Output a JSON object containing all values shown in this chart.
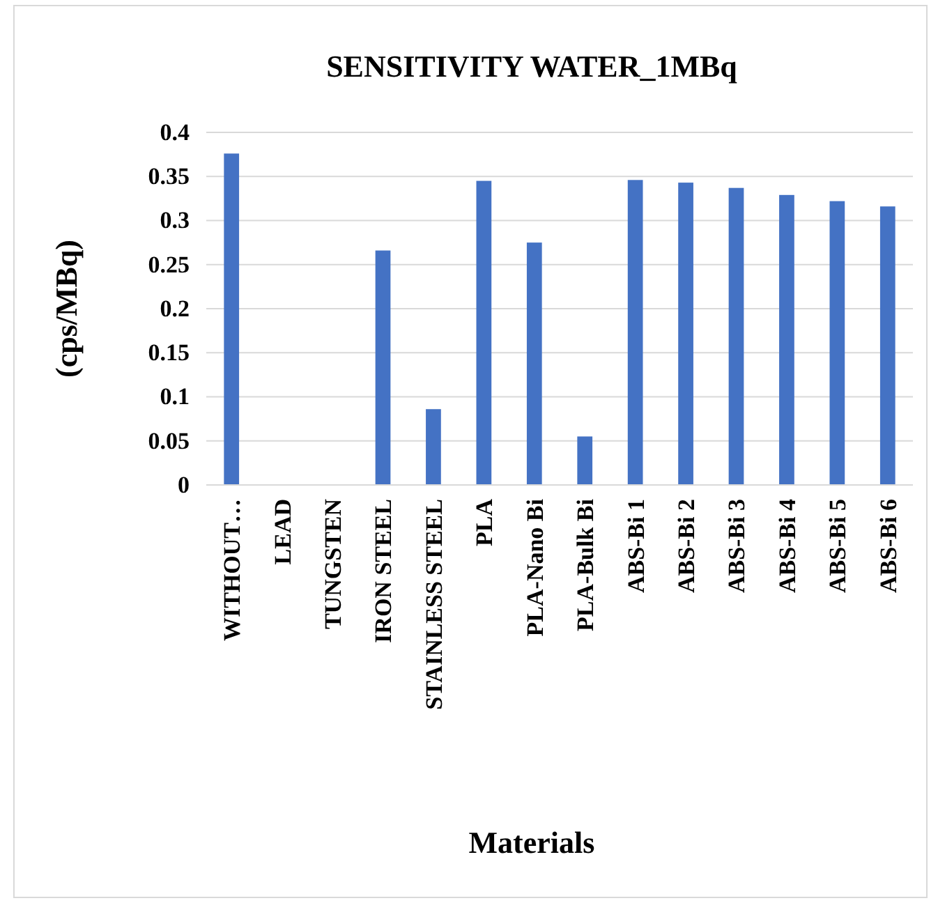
{
  "chart_data": {
    "type": "bar",
    "title": "SENSITIVITY WATER_1MBq",
    "xlabel": "Materials",
    "ylabel": "(cps/MBq)",
    "categories": [
      "WITHOUT…",
      "LEAD",
      "TUNGSTEN",
      "IRON STEEL",
      "STAINLESS STEEL",
      "PLA",
      "PLA-Nano Bi",
      "PLA-Bulk Bi",
      "ABS-Bi 1",
      "ABS-Bi 2",
      "ABS-Bi 3",
      "ABS-Bi 4",
      "ABS-Bi 5",
      "ABS-Bi 6"
    ],
    "values": [
      0.376,
      0,
      0,
      0.266,
      0.086,
      0.345,
      0.275,
      0.055,
      0.346,
      0.343,
      0.337,
      0.329,
      0.322,
      0.316
    ],
    "color": "#4472c4",
    "ylim": [
      0,
      0.4
    ],
    "yticks": [
      {
        "value": 0,
        "label": "0"
      },
      {
        "value": 0.05,
        "label": "0.05"
      },
      {
        "value": 0.1,
        "label": "0.1"
      },
      {
        "value": 0.15,
        "label": "0.15"
      },
      {
        "value": 0.2,
        "label": "0.2"
      },
      {
        "value": 0.25,
        "label": "0.25"
      },
      {
        "value": 0.3,
        "label": "0.3"
      },
      {
        "value": 0.35,
        "label": "0.35"
      },
      {
        "value": 0.4,
        "label": "0.4"
      }
    ],
    "grid": true
  }
}
